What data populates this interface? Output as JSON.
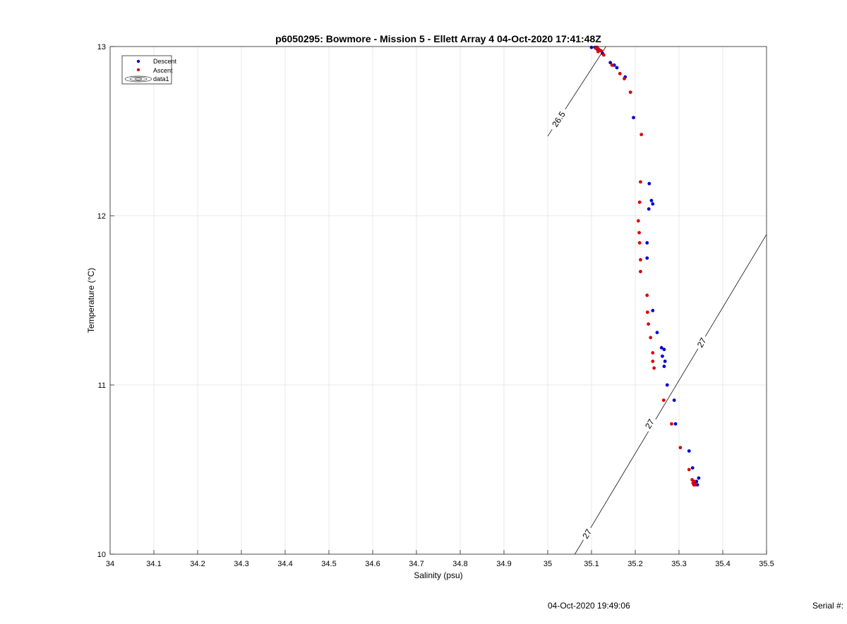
{
  "chart_data": {
    "type": "scatter",
    "title": "p6050295: Bowmore - Mission 5 - Ellett Array 4 04-Oct-2020 17:41:48Z",
    "xlabel": "Salinity (psu)",
    "ylabel": "Temperature (°C)",
    "xlim": [
      34,
      35.5
    ],
    "ylim": [
      10,
      13
    ],
    "x_ticks": [
      "34",
      "34.1",
      "34.2",
      "34.3",
      "34.4",
      "34.5",
      "34.6",
      "34.7",
      "34.8",
      "34.9",
      "35",
      "35.1",
      "35.2",
      "35.3",
      "35.4",
      "35.5"
    ],
    "y_ticks": [
      "10",
      "11",
      "12",
      "13"
    ],
    "grid": true,
    "legend": {
      "placement": "top-left",
      "entries": [
        "Descent",
        "Ascent",
        "data1"
      ]
    },
    "series": [
      {
        "name": "Descent",
        "color": "#0000cc",
        "points": [
          [
            35.1,
            12.995
          ],
          [
            35.108,
            12.995
          ],
          [
            35.113,
            12.985
          ],
          [
            35.118,
            12.98
          ],
          [
            35.125,
            12.96
          ],
          [
            35.143,
            12.905
          ],
          [
            35.152,
            12.89
          ],
          [
            35.158,
            12.875
          ],
          [
            35.177,
            12.82
          ],
          [
            35.196,
            12.58
          ],
          [
            35.232,
            12.19
          ],
          [
            35.237,
            12.09
          ],
          [
            35.24,
            12.07
          ],
          [
            35.231,
            12.04
          ],
          [
            35.227,
            11.84
          ],
          [
            35.227,
            11.75
          ],
          [
            35.24,
            11.44
          ],
          [
            35.25,
            11.31
          ],
          [
            35.26,
            11.22
          ],
          [
            35.266,
            11.21
          ],
          [
            35.262,
            11.17
          ],
          [
            35.268,
            11.14
          ],
          [
            35.266,
            11.11
          ],
          [
            35.273,
            11.0
          ],
          [
            35.289,
            10.91
          ],
          [
            35.292,
            10.77
          ],
          [
            35.323,
            10.61
          ],
          [
            35.331,
            10.51
          ],
          [
            35.345,
            10.45
          ],
          [
            35.34,
            10.43
          ],
          [
            35.335,
            10.42
          ],
          [
            35.342,
            10.41
          ]
        ]
      },
      {
        "name": "Ascent",
        "color": "#dd0000",
        "points": [
          [
            35.11,
            12.99
          ],
          [
            35.113,
            12.995
          ],
          [
            35.116,
            12.985
          ],
          [
            35.115,
            12.97
          ],
          [
            35.122,
            12.975
          ],
          [
            35.128,
            12.95
          ],
          [
            35.147,
            12.89
          ],
          [
            35.165,
            12.84
          ],
          [
            35.175,
            12.81
          ],
          [
            35.189,
            12.73
          ],
          [
            35.214,
            12.48
          ],
          [
            35.212,
            12.2
          ],
          [
            35.21,
            12.08
          ],
          [
            35.207,
            11.97
          ],
          [
            35.209,
            11.9
          ],
          [
            35.21,
            11.84
          ],
          [
            35.212,
            11.74
          ],
          [
            35.212,
            11.67
          ],
          [
            35.227,
            11.53
          ],
          [
            35.228,
            11.43
          ],
          [
            35.23,
            11.36
          ],
          [
            35.235,
            11.28
          ],
          [
            35.24,
            11.19
          ],
          [
            35.24,
            11.14
          ],
          [
            35.243,
            11.1
          ],
          [
            35.265,
            10.91
          ],
          [
            35.283,
            10.77
          ],
          [
            35.303,
            10.63
          ],
          [
            35.323,
            10.5
          ],
          [
            35.33,
            10.44
          ],
          [
            35.332,
            10.42
          ],
          [
            35.334,
            10.41
          ],
          [
            35.337,
            10.41
          ],
          [
            35.335,
            10.43
          ]
        ]
      }
    ],
    "isopycnals": [
      {
        "label": "26.5",
        "from": [
          35.0,
          12.47
        ],
        "to": [
          35.133,
          13.0
        ],
        "label_at": [
          35.025,
          12.57
        ]
      },
      {
        "label": "27",
        "from": [
          35.062,
          10.0
        ],
        "to": [
          35.5,
          11.89
        ],
        "label_at": [
          35.352,
          11.25
        ],
        "label_at_2": [
          35.233,
          10.77
        ],
        "label_at_3": [
          35.09,
          10.12
        ]
      }
    ]
  },
  "footer": {
    "date": "04-Oct-2020 19:49:06",
    "serial": "Serial #:"
  }
}
